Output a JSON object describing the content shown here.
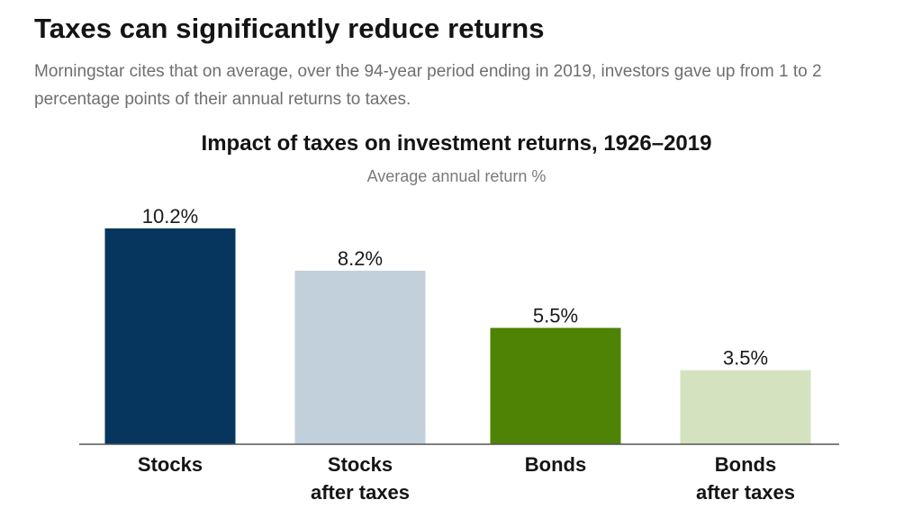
{
  "headline": "Taxes can significantly reduce returns",
  "intro": "Morningstar cites that on average, over the 94-year period ending in 2019, investors gave up from 1 to 2 percentage points of their annual returns to taxes.",
  "chart_data": {
    "type": "bar",
    "title": "Impact of taxes on investment returns, 1926–2019",
    "subtitle": "Average annual return %",
    "categories": [
      [
        "Stocks"
      ],
      [
        "Stocks",
        "after taxes"
      ],
      [
        "Bonds"
      ],
      [
        "Bonds",
        "after taxes"
      ]
    ],
    "values": [
      10.2,
      8.2,
      5.5,
      3.5
    ],
    "value_labels": [
      "10.2%",
      "8.2%",
      "5.5%",
      "3.5%"
    ],
    "colors": [
      "#06365e",
      "#c2d0db",
      "#4e8305",
      "#d5e2bf"
    ],
    "axis_color": "#555555",
    "ylim": [
      0,
      10.2
    ],
    "grid": false,
    "legend": "none"
  }
}
